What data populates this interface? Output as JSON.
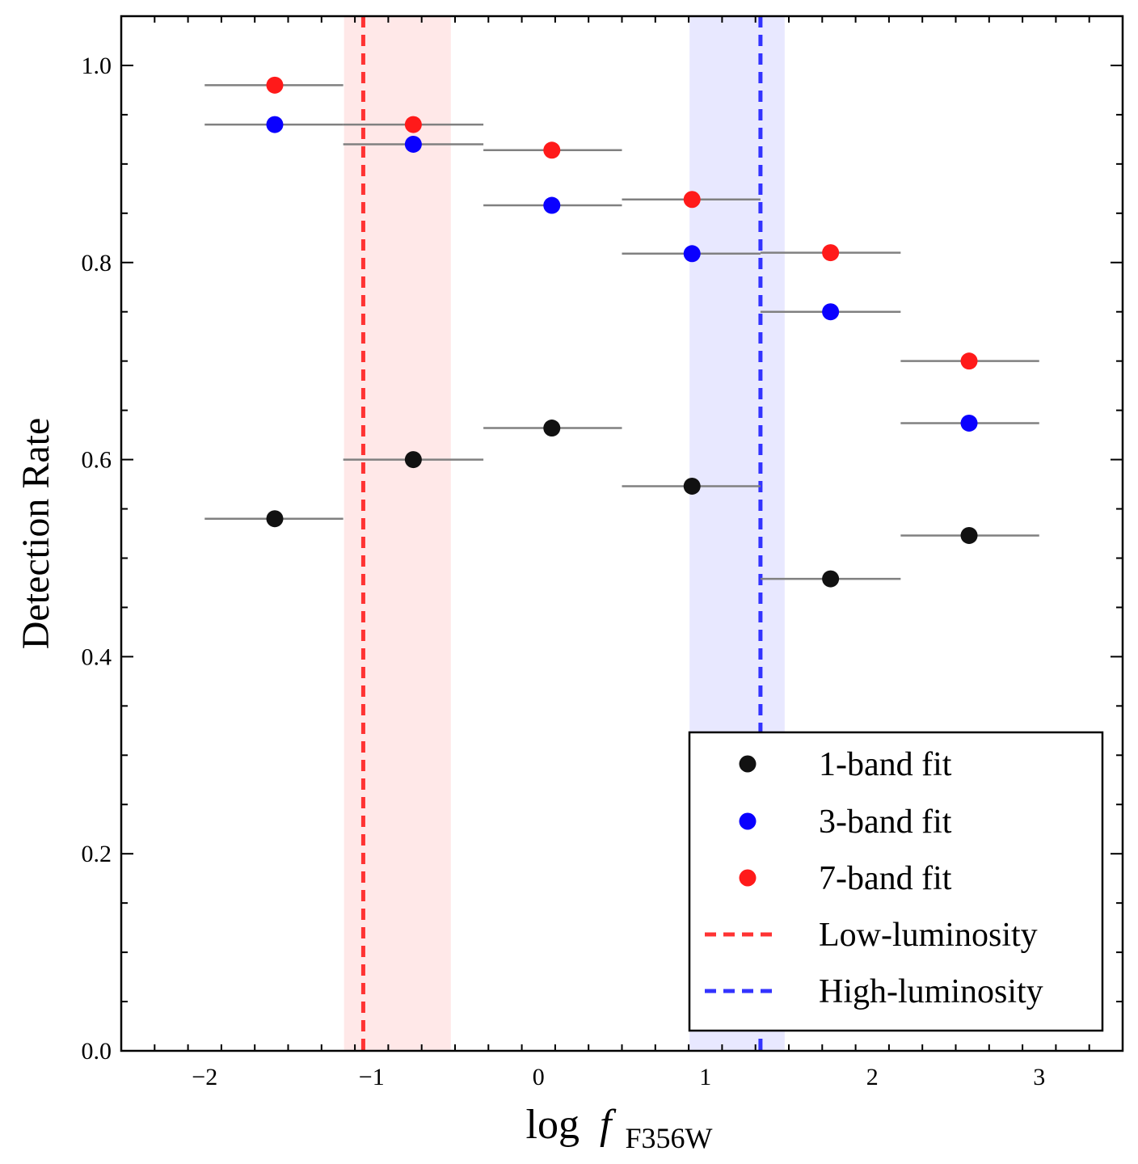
{
  "chart_data": {
    "type": "scatter",
    "title": "",
    "xlabel": {
      "prefix": "log",
      "var": "f",
      "sub": "F356W"
    },
    "ylabel": "Detection Rate",
    "xlim": [
      -2.5,
      3.5
    ],
    "ylim": [
      0.0,
      1.05
    ],
    "xticks": [
      -2,
      -1,
      0,
      1,
      2,
      3
    ],
    "xtick_labels": [
      "−2",
      "−1",
      "0",
      "1",
      "2",
      "3"
    ],
    "yticks": [
      0.0,
      0.2,
      0.4,
      0.6,
      0.8,
      1.0
    ],
    "ytick_labels": [
      "0.0",
      "0.2",
      "0.4",
      "0.6",
      "0.8",
      "1.0"
    ],
    "bin_edges": [
      -2.0,
      -1.17,
      -0.33,
      0.5,
      1.33,
      2.17,
      3.0
    ],
    "x": [
      -1.58,
      -0.75,
      0.08,
      0.92,
      1.75,
      2.58
    ],
    "series": [
      {
        "name": "1-band fit",
        "color": "#111111",
        "values": [
          0.54,
          0.6,
          0.632,
          0.573,
          0.479,
          0.523
        ]
      },
      {
        "name": "3-band fit",
        "color": "#0a00ff",
        "values": [
          0.94,
          0.92,
          0.858,
          0.809,
          0.75,
          0.637
        ]
      },
      {
        "name": "7-band fit",
        "color": "#ff1a1a",
        "values": [
          0.98,
          0.94,
          0.914,
          0.864,
          0.81,
          0.7
        ]
      }
    ],
    "errorbar_color": "#808080",
    "reference_lines": [
      {
        "name": "Low-luminosity",
        "x": -1.05,
        "band": [
          -1.16,
          -0.53
        ],
        "color": "#ff3333",
        "band_color": "#ffe8e8"
      },
      {
        "name": "High-luminosity",
        "x": 1.33,
        "band": [
          0.91,
          1.47
        ],
        "color": "#3333ff",
        "band_color": "#e8e8ff"
      }
    ],
    "legend_position": "lower-right",
    "grid": false
  }
}
